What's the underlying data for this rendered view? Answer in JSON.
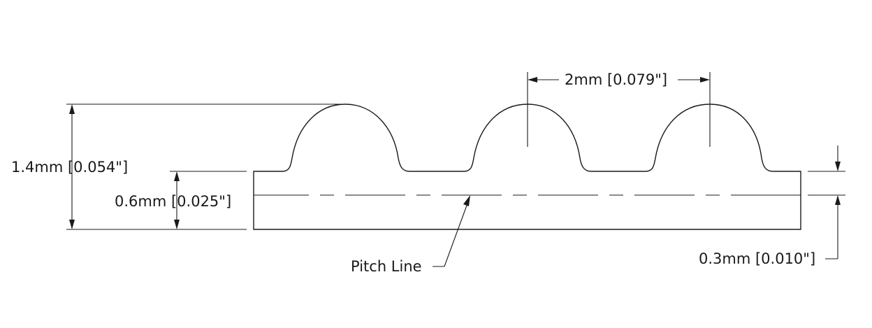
{
  "diagram": {
    "labels": {
      "total_height": "1.4mm [0.054\"]",
      "belt_thickness": "0.6mm [0.025\"]",
      "pitch": "2mm [0.079\"]",
      "pitch_line": "Pitch Line",
      "pld": "0.3mm [0.010\"]"
    }
  }
}
